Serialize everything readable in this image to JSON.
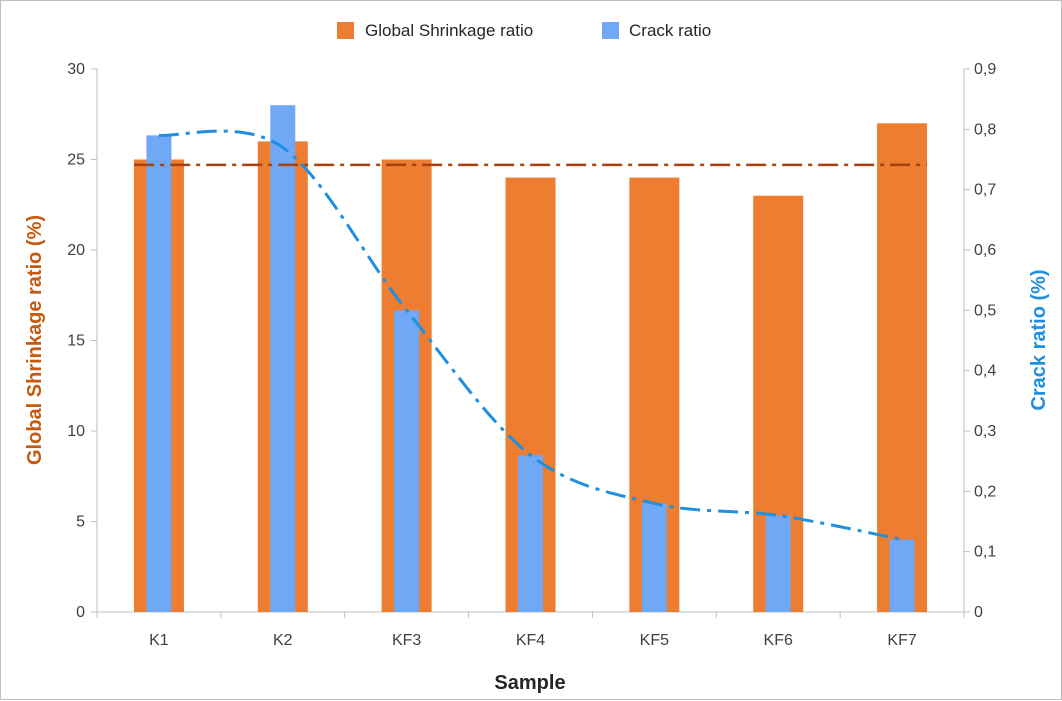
{
  "chart_data": {
    "type": "bar",
    "categories": [
      "K1",
      "K2",
      "KF3",
      "KF4",
      "KF5",
      "KF6",
      "KF7"
    ],
    "series": [
      {
        "name": "Global Shrinkage ratio",
        "axis": "left",
        "color": "#ED7D31",
        "values": [
          25,
          26,
          25,
          24,
          24,
          23,
          27
        ]
      },
      {
        "name": "Crack ratio",
        "axis": "right",
        "color": "#6FA8F5",
        "values": [
          0.79,
          0.84,
          0.5,
          0.26,
          0.18,
          0.16,
          0.12
        ]
      }
    ],
    "trendlines": [
      {
        "series": "Crack ratio",
        "axis": "right",
        "style": "dash-dot smooth",
        "color": "#1F8FE0",
        "values": [
          0.79,
          0.77,
          0.5,
          0.26,
          0.18,
          0.16,
          0.12
        ]
      },
      {
        "series": "Global Shrinkage ratio",
        "axis": "left",
        "style": "dash-dot flat",
        "color": "#A5420E",
        "value": 24.7
      }
    ],
    "xlabel": "Sample",
    "ylabel": "Global Shrinkage ratio (%)",
    "y2label": "Crack ratio (%)",
    "ylim": [
      0,
      30
    ],
    "y2lim": [
      0,
      0.9
    ],
    "yticks": [
      "0",
      "5",
      "10",
      "15",
      "20",
      "25",
      "30"
    ],
    "y2ticks": [
      "0",
      "0,1",
      "0,2",
      "0,3",
      "0,4",
      "0,5",
      "0,6",
      "0,7",
      "0,8",
      "0,9"
    ],
    "legend_position": "top-center",
    "grid": false,
    "ylabel_color": "#C55A11",
    "y2label_color": "#1F8FE0"
  }
}
